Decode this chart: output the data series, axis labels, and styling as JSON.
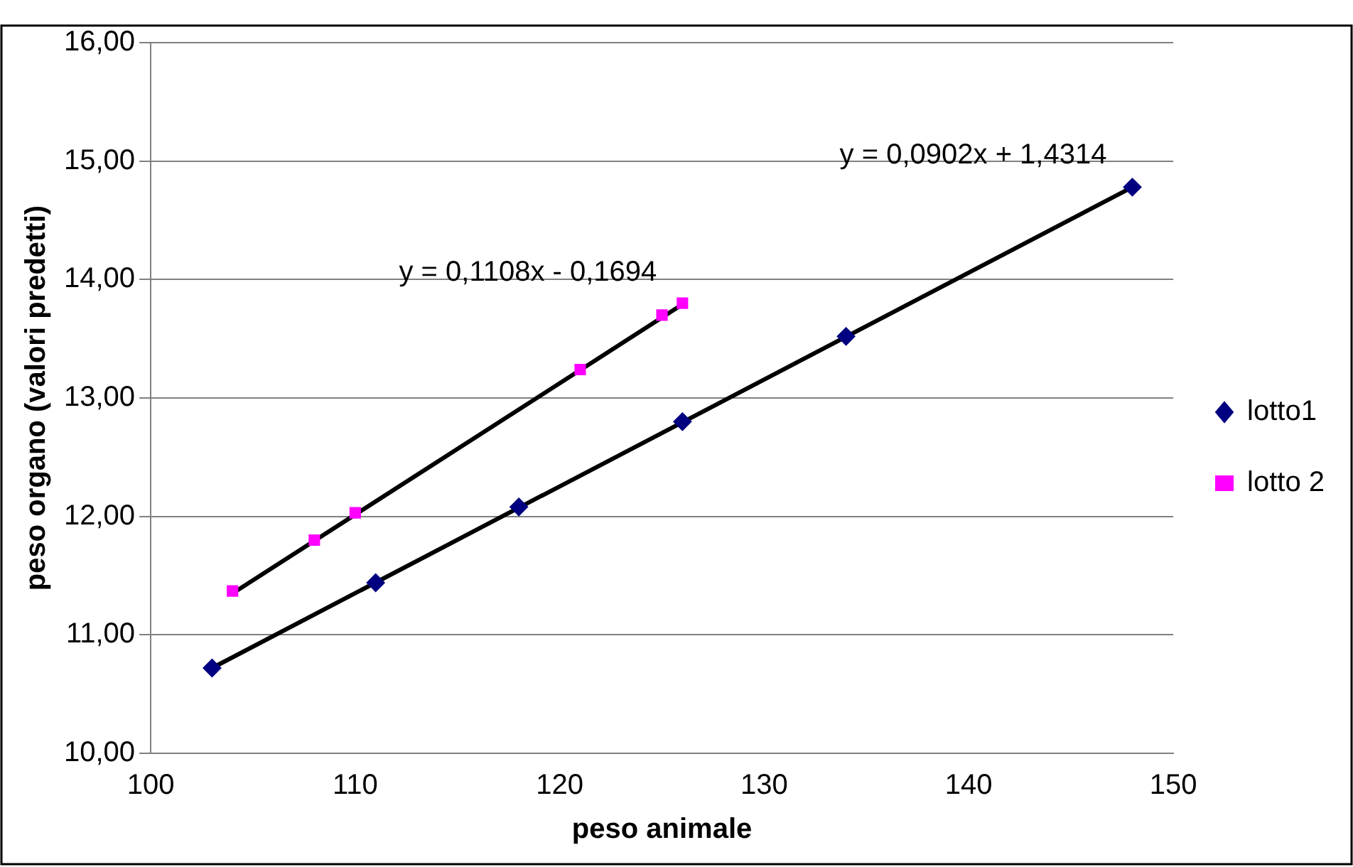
{
  "chart_data": {
    "type": "scatter",
    "xlabel": "peso animale",
    "ylabel": "peso organo (valori predetti)",
    "xlim": [
      100,
      150
    ],
    "xticks": [
      100,
      110,
      120,
      130,
      140,
      150
    ],
    "ylim": [
      10,
      16
    ],
    "yticks": [
      {
        "value": 10,
        "label": "10,00"
      },
      {
        "value": 11,
        "label": "11,00"
      },
      {
        "value": 12,
        "label": "12,00"
      },
      {
        "value": 13,
        "label": "13,00"
      },
      {
        "value": 14,
        "label": "14,00"
      },
      {
        "value": 15,
        "label": "15,00"
      },
      {
        "value": 16,
        "label": "16,00"
      }
    ],
    "grid": "y",
    "legend": "right",
    "series": [
      {
        "name": "lotto1",
        "color": "#000080",
        "marker": "diamond",
        "x": [
          103,
          111,
          118,
          126,
          134,
          148
        ],
        "values": [
          10.72,
          11.44,
          12.08,
          12.8,
          13.52,
          14.78
        ]
      },
      {
        "name": "lotto 2",
        "color": "#ff00ff",
        "marker": "square",
        "x": [
          104,
          108,
          110,
          121,
          125,
          126
        ],
        "values": [
          11.37,
          11.8,
          12.03,
          13.24,
          13.7,
          13.8
        ]
      },
      {
        "type": "line",
        "color": "#000000",
        "marker": "none",
        "x": [
          103,
          148
        ],
        "values": [
          10.72,
          14.78
        ]
      },
      {
        "type": "line",
        "color": "#000000",
        "marker": "none",
        "x": [
          104,
          126
        ],
        "values": [
          11.35,
          13.79
        ]
      }
    ],
    "annotations": [
      "y = 0,0902x + 1,4314",
      "y = 0,1108x - 0,1694"
    ]
  }
}
